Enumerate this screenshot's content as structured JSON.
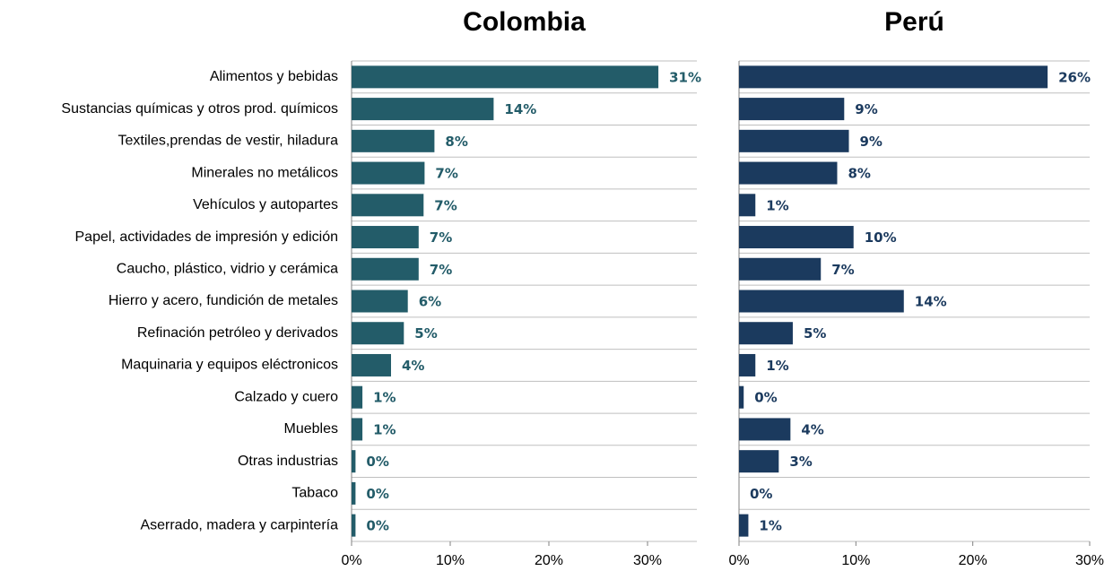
{
  "chart_data": [
    {
      "type": "bar",
      "title": "Colombia",
      "categories": [
        "Alimentos y bebidas",
        "Sustancias químicas y otros prod. químicos",
        "Textiles,prendas de vestir, hiladura",
        "Minerales no metálicos",
        "Vehículos y autopartes",
        "Papel, actividades de impresión y edición",
        "Caucho, plástico, vidrio y cerámica",
        "Hierro y acero, fundición de metales",
        "Refinación petróleo y derivados",
        "Maquinaria y equipos eléctronicos",
        "Calzado y cuero",
        "Muebles",
        "Otras industrias",
        "Tabaco",
        "Aserrado, madera y carpintería"
      ],
      "values": [
        31.1,
        14.4,
        8.4,
        7.4,
        7.3,
        6.8,
        6.8,
        5.7,
        5.3,
        4.0,
        1.1,
        1.1,
        0.4,
        0.4,
        0.4
      ],
      "value_labels": [
        "31%",
        "14%",
        "8%",
        "7%",
        "7%",
        "7%",
        "7%",
        "6%",
        "5%",
        "4%",
        "1%",
        "1%",
        "0%",
        "0%",
        "0%"
      ],
      "color": "#235c69",
      "xlim": [
        0,
        35
      ],
      "xticks": [
        {
          "value": 0,
          "label": "0%"
        },
        {
          "value": 10,
          "label": "10%"
        },
        {
          "value": 20,
          "label": "20%"
        },
        {
          "value": 30,
          "label": "30%"
        }
      ]
    },
    {
      "type": "bar",
      "title": "Perú",
      "values": [
        26.4,
        9.0,
        9.4,
        8.4,
        1.4,
        9.8,
        7.0,
        14.1,
        4.6,
        1.4,
        0.4,
        4.4,
        3.4,
        0,
        0.8
      ],
      "value_labels": [
        "26%",
        "9%",
        "9%",
        "8%",
        "1%",
        "10%",
        "7%",
        "14%",
        "5%",
        "1%",
        "0%",
        "4%",
        "3%",
        "0%",
        "1%"
      ],
      "color": "#1b3a5e",
      "xlim": [
        0,
        30
      ],
      "xticks": [
        {
          "value": 0,
          "label": "0%"
        },
        {
          "value": 10,
          "label": "10%"
        },
        {
          "value": 20,
          "label": "20%"
        },
        {
          "value": 30,
          "label": "30%"
        }
      ]
    }
  ]
}
